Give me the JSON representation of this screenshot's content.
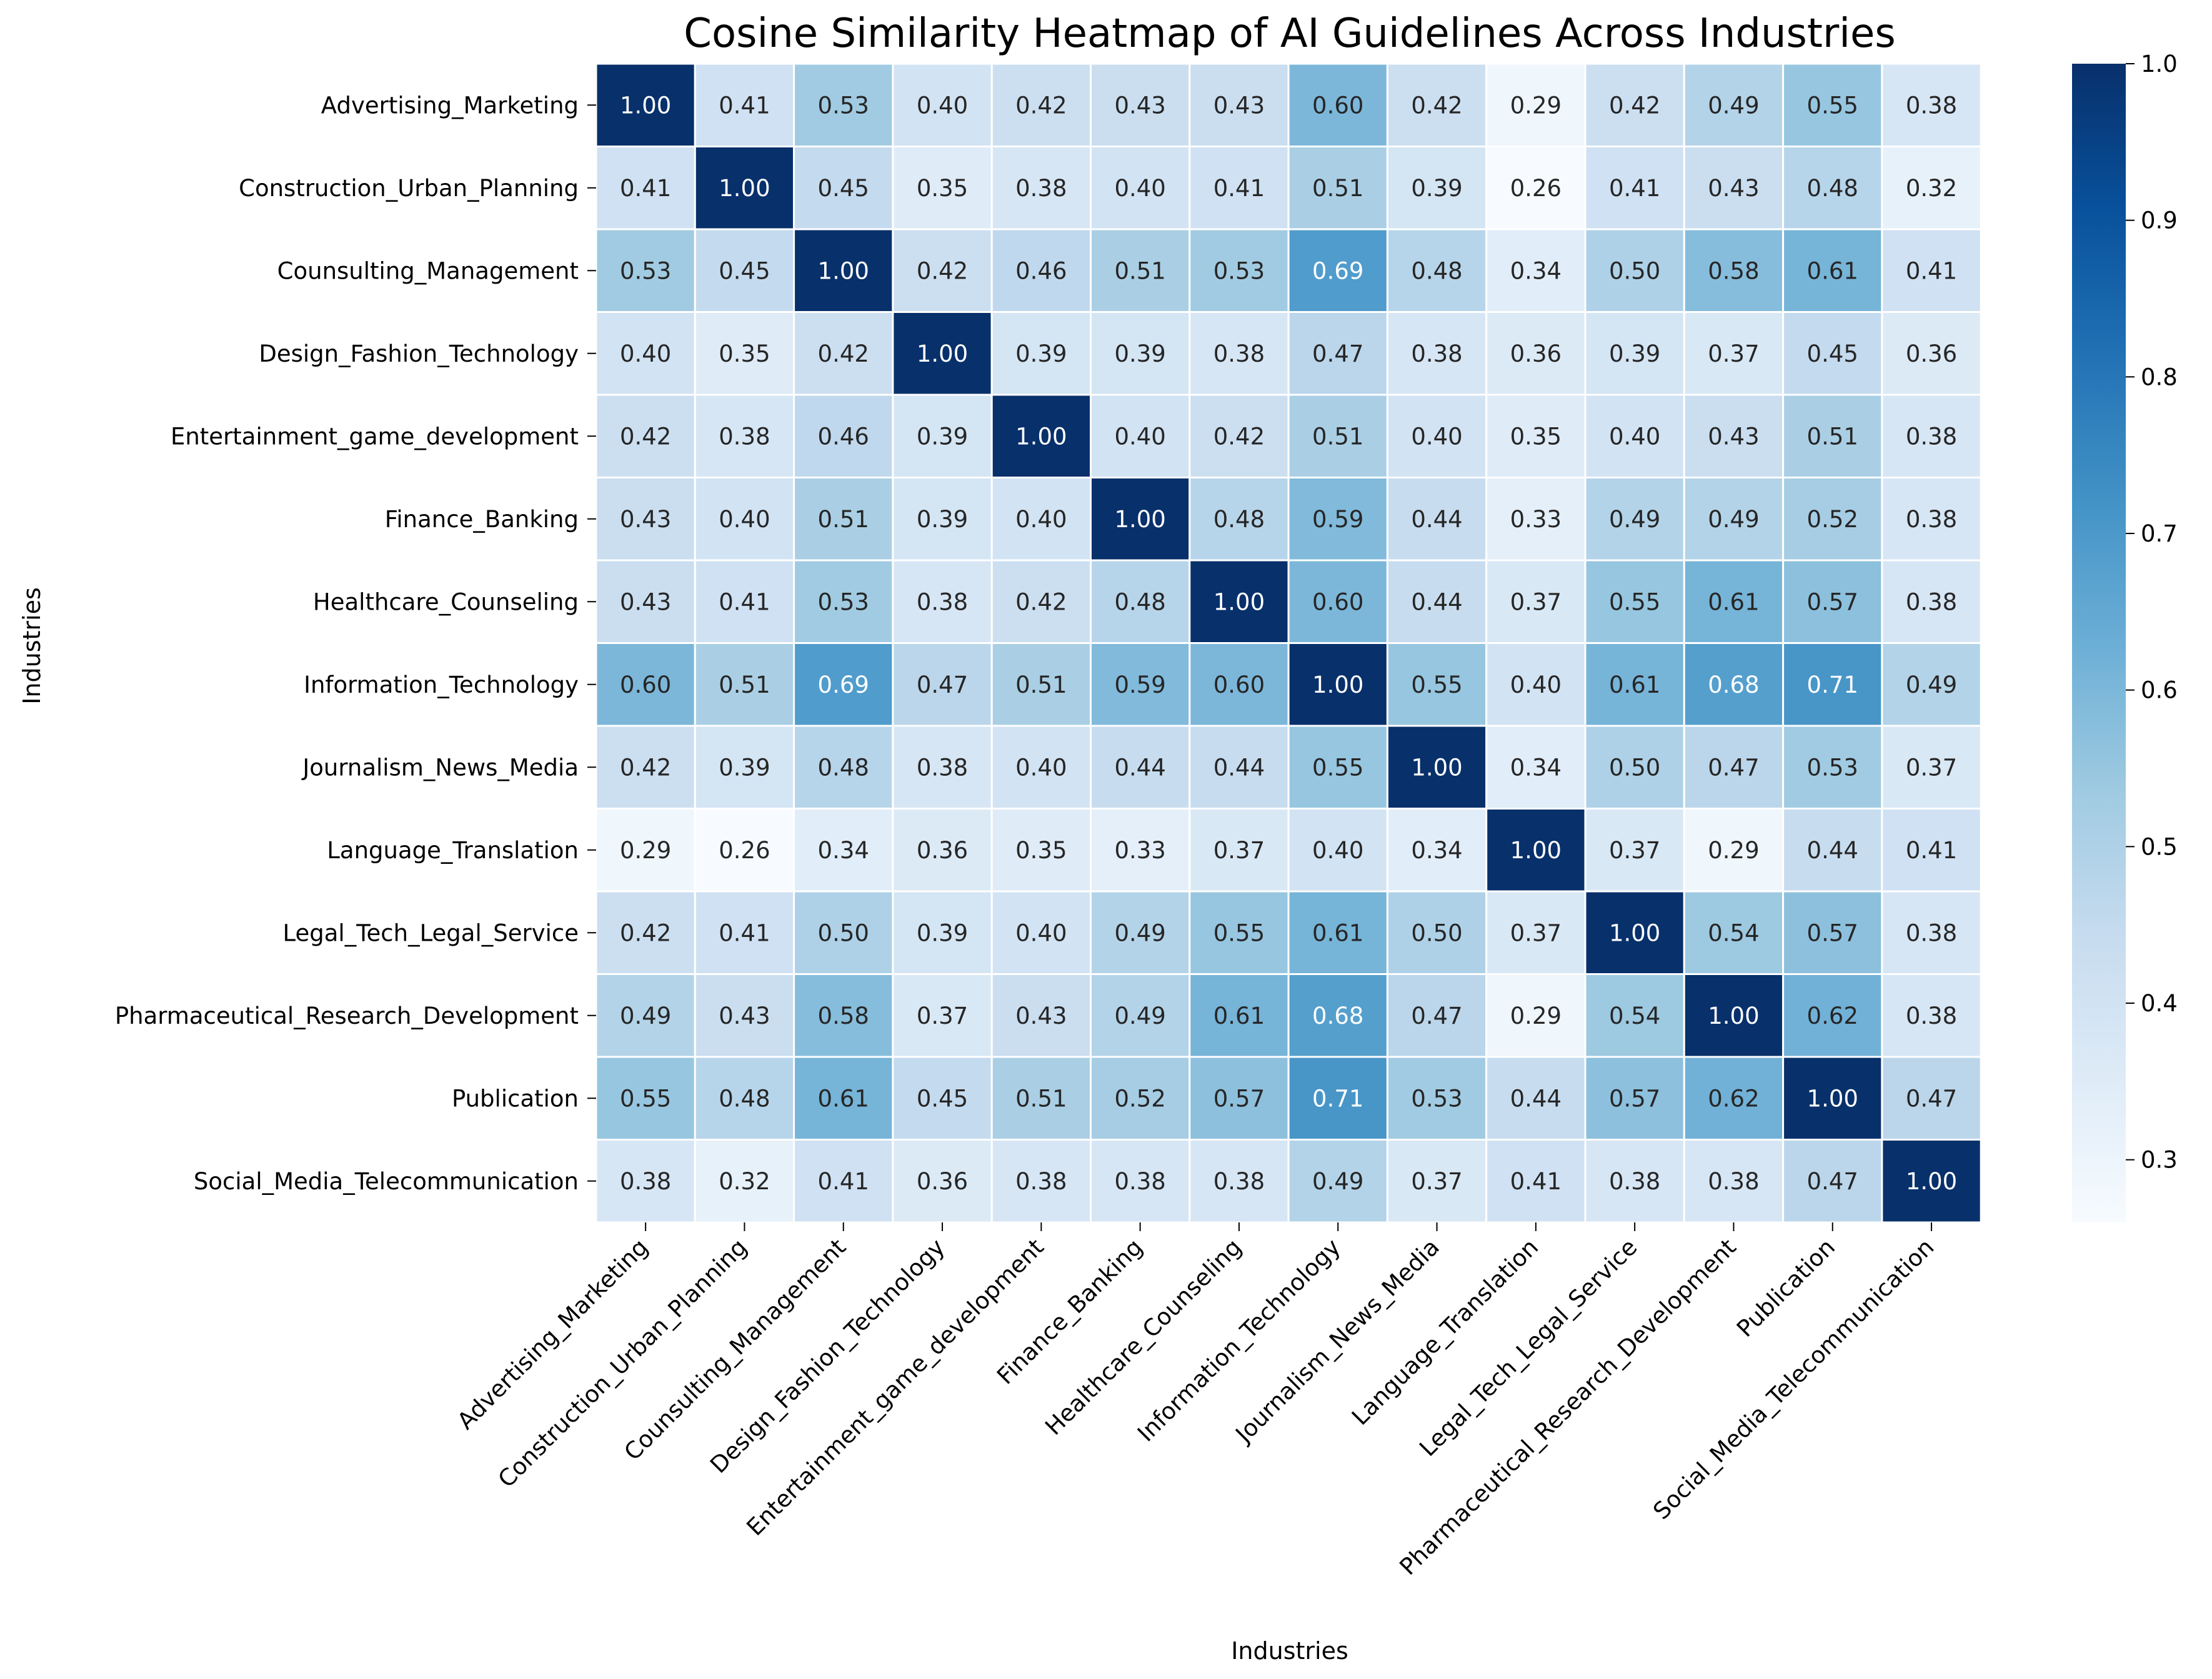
{
  "chart_data": {
    "type": "heatmap",
    "title": "Cosine Similarity Heatmap of AI Guidelines Across Industries",
    "xlabel": "Industries",
    "ylabel": "Industries",
    "categories": [
      "Advertising_Marketing",
      "Construction_Urban_Planning",
      "Counsulting_Management",
      "Design_Fashion_Technology",
      "Entertainment_game_development",
      "Finance_Banking",
      "Healthcare_Counseling",
      "Information_Technology",
      "Journalism_News_Media",
      "Language_Translation",
      "Legal_Tech_Legal_Service",
      "Pharmaceutical_Research_Development",
      "Publication",
      "Social_Media_Telecommunication"
    ],
    "values": [
      [
        1.0,
        0.41,
        0.53,
        0.4,
        0.42,
        0.43,
        0.43,
        0.6,
        0.42,
        0.29,
        0.42,
        0.49,
        0.55,
        0.38
      ],
      [
        0.41,
        1.0,
        0.45,
        0.35,
        0.38,
        0.4,
        0.41,
        0.51,
        0.39,
        0.26,
        0.41,
        0.43,
        0.48,
        0.32
      ],
      [
        0.53,
        0.45,
        1.0,
        0.42,
        0.46,
        0.51,
        0.53,
        0.69,
        0.48,
        0.34,
        0.5,
        0.58,
        0.61,
        0.41
      ],
      [
        0.4,
        0.35,
        0.42,
        1.0,
        0.39,
        0.39,
        0.38,
        0.47,
        0.38,
        0.36,
        0.39,
        0.37,
        0.45,
        0.36
      ],
      [
        0.42,
        0.38,
        0.46,
        0.39,
        1.0,
        0.4,
        0.42,
        0.51,
        0.4,
        0.35,
        0.4,
        0.43,
        0.51,
        0.38
      ],
      [
        0.43,
        0.4,
        0.51,
        0.39,
        0.4,
        1.0,
        0.48,
        0.59,
        0.44,
        0.33,
        0.49,
        0.49,
        0.52,
        0.38
      ],
      [
        0.43,
        0.41,
        0.53,
        0.38,
        0.42,
        0.48,
        1.0,
        0.6,
        0.44,
        0.37,
        0.55,
        0.61,
        0.57,
        0.38
      ],
      [
        0.6,
        0.51,
        0.69,
        0.47,
        0.51,
        0.59,
        0.6,
        1.0,
        0.55,
        0.4,
        0.61,
        0.68,
        0.71,
        0.49
      ],
      [
        0.42,
        0.39,
        0.48,
        0.38,
        0.4,
        0.44,
        0.44,
        0.55,
        1.0,
        0.34,
        0.5,
        0.47,
        0.53,
        0.37
      ],
      [
        0.29,
        0.26,
        0.34,
        0.36,
        0.35,
        0.33,
        0.37,
        0.4,
        0.34,
        1.0,
        0.37,
        0.29,
        0.44,
        0.41
      ],
      [
        0.42,
        0.41,
        0.5,
        0.39,
        0.4,
        0.49,
        0.55,
        0.61,
        0.5,
        0.37,
        1.0,
        0.54,
        0.57,
        0.38
      ],
      [
        0.49,
        0.43,
        0.58,
        0.37,
        0.43,
        0.49,
        0.61,
        0.68,
        0.47,
        0.29,
        0.54,
        1.0,
        0.62,
        0.38
      ],
      [
        0.55,
        0.48,
        0.61,
        0.45,
        0.51,
        0.52,
        0.57,
        0.71,
        0.53,
        0.44,
        0.57,
        0.62,
        1.0,
        0.47
      ],
      [
        0.38,
        0.32,
        0.41,
        0.36,
        0.38,
        0.38,
        0.38,
        0.49,
        0.37,
        0.41,
        0.38,
        0.38,
        0.47,
        1.0
      ]
    ],
    "value_format": "2 decimals",
    "colorscale": "Blues",
    "color_range": [
      0.26,
      1.0
    ],
    "colorbar_ticks": [
      "0.3",
      "0.4",
      "0.5",
      "0.6",
      "0.7",
      "0.8",
      "0.9",
      "1.0"
    ],
    "colorbar_position": "right",
    "grid": false
  }
}
